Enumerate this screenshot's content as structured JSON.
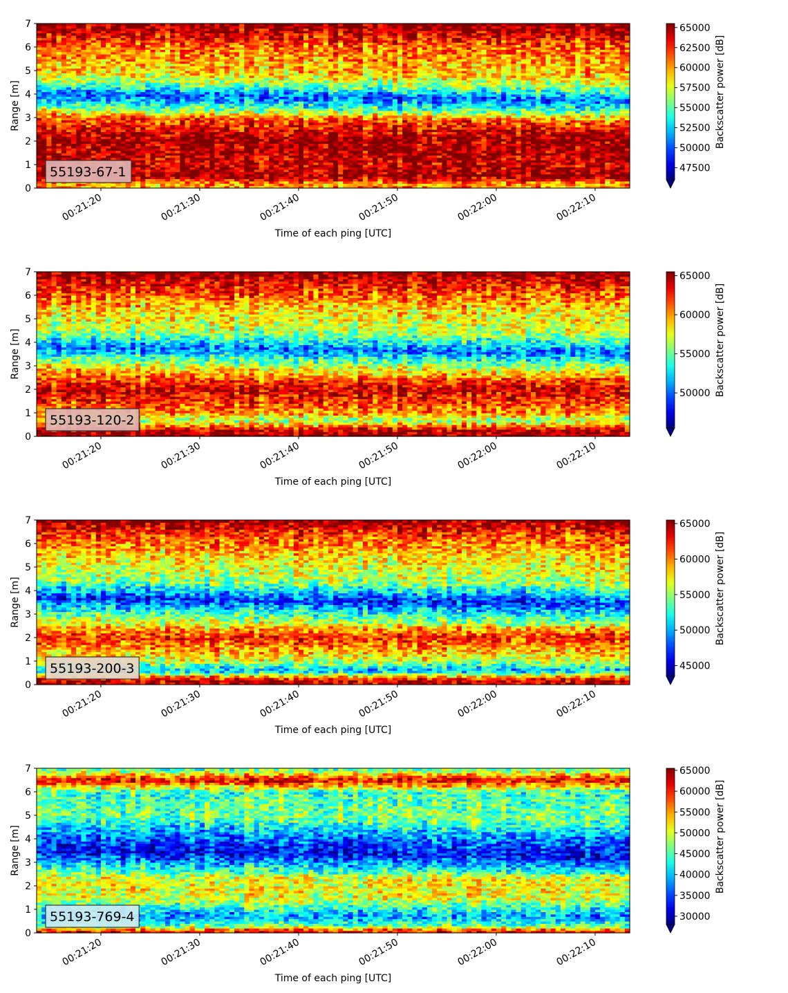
{
  "chart_data": [
    {
      "type": "heatmap",
      "panel_label": "55193-67-1",
      "label_box_color": "#e0b4b4",
      "xlabel": "Time of each ping [UTC]",
      "ylabel": "Range [m]",
      "colorbar_label": "Backscatter power [dB]",
      "x_start": "00:21:13.5",
      "x_end": "00:22:13.5",
      "x_ticks": [
        "00:21:20",
        "00:21:30",
        "00:21:40",
        "00:21:50",
        "00:22:00",
        "00:22:10"
      ],
      "ylim": [
        0,
        7
      ],
      "y_ticks": [
        0,
        1,
        2,
        3,
        4,
        5,
        6,
        7
      ],
      "colorbar_range": [
        46000,
        65500
      ],
      "colorbar_ticks": [
        47500,
        50000,
        52500,
        55000,
        57500,
        60000,
        62500,
        65000
      ],
      "colormap": "jet",
      "colorbar_extend": "min",
      "band_profile": [
        {
          "range": 0.2,
          "value": 60000
        },
        {
          "range": 0.5,
          "value": 65000
        },
        {
          "range": 1.0,
          "value": 64000
        },
        {
          "range": 2.0,
          "value": 65000
        },
        {
          "range": 3.0,
          "value": 62000
        },
        {
          "range": 3.5,
          "value": 55000
        },
        {
          "range": 4.0,
          "value": 50000
        },
        {
          "range": 4.5,
          "value": 56000
        },
        {
          "range": 5.0,
          "value": 59000
        },
        {
          "range": 6.0,
          "value": 61000
        },
        {
          "range": 6.6,
          "value": 64000
        },
        {
          "range": 7.0,
          "value": 65500
        }
      ]
    },
    {
      "type": "heatmap",
      "panel_label": "55193-120-2",
      "label_box_color": "#e0b4b4",
      "xlabel": "Time of each ping [UTC]",
      "ylabel": "Range [m]",
      "colorbar_label": "Backscatter power [dB]",
      "x_start": "00:21:13.5",
      "x_end": "00:22:13.5",
      "x_ticks": [
        "00:21:20",
        "00:21:30",
        "00:21:40",
        "00:21:50",
        "00:22:00",
        "00:22:10"
      ],
      "ylim": [
        0,
        7
      ],
      "y_ticks": [
        0,
        1,
        2,
        3,
        4,
        5,
        6,
        7
      ],
      "colorbar_range": [
        45500,
        65500
      ],
      "colorbar_ticks": [
        50000,
        55000,
        60000,
        65000
      ],
      "colormap": "jet",
      "colorbar_extend": "min",
      "band_profile": [
        {
          "range": 0.2,
          "value": 65000
        },
        {
          "range": 0.7,
          "value": 56000
        },
        {
          "range": 1.0,
          "value": 60000
        },
        {
          "range": 2.0,
          "value": 64000
        },
        {
          "range": 3.0,
          "value": 58000
        },
        {
          "range": 3.8,
          "value": 50000
        },
        {
          "range": 4.5,
          "value": 56000
        },
        {
          "range": 5.5,
          "value": 59000
        },
        {
          "range": 6.5,
          "value": 63000
        },
        {
          "range": 7.0,
          "value": 65500
        }
      ]
    },
    {
      "type": "heatmap",
      "panel_label": "55193-200-3",
      "label_box_color": "#e8d2c8",
      "xlabel": "Time of each ping [UTC]",
      "ylabel": "Range [m]",
      "colorbar_label": "Backscatter power [dB]",
      "x_start": "00:21:13.5",
      "x_end": "00:22:13.5",
      "x_ticks": [
        "00:21:20",
        "00:21:30",
        "00:21:40",
        "00:21:50",
        "00:22:00",
        "00:22:10"
      ],
      "ylim": [
        0,
        7
      ],
      "y_ticks": [
        0,
        1,
        2,
        3,
        4,
        5,
        6,
        7
      ],
      "colorbar_range": [
        43500,
        65500
      ],
      "colorbar_ticks": [
        45000,
        50000,
        55000,
        60000,
        65000
      ],
      "colormap": "jet",
      "colorbar_extend": "min",
      "band_profile": [
        {
          "range": 0.2,
          "value": 64000
        },
        {
          "range": 0.6,
          "value": 50000
        },
        {
          "range": 1.0,
          "value": 56000
        },
        {
          "range": 2.0,
          "value": 62000
        },
        {
          "range": 3.0,
          "value": 54000
        },
        {
          "range": 3.7,
          "value": 47000
        },
        {
          "range": 4.5,
          "value": 55000
        },
        {
          "range": 5.5,
          "value": 58000
        },
        {
          "range": 6.5,
          "value": 62000
        },
        {
          "range": 7.0,
          "value": 65500
        }
      ]
    },
    {
      "type": "heatmap",
      "panel_label": "55193-769-4",
      "label_box_color": "#cdeaf2",
      "xlabel": "Time of each ping [UTC]",
      "ylabel": "Range [m]",
      "colorbar_label": "Backscatter power [dB]",
      "x_start": "00:21:13.5",
      "x_end": "00:22:13.5",
      "x_ticks": [
        "00:21:20",
        "00:21:30",
        "00:21:40",
        "00:21:50",
        "00:22:00",
        "00:22:10"
      ],
      "ylim": [
        0,
        7
      ],
      "y_ticks": [
        0,
        1,
        2,
        3,
        4,
        5,
        6,
        7
      ],
      "colorbar_range": [
        28000,
        65500
      ],
      "colorbar_ticks": [
        30000,
        35000,
        40000,
        45000,
        50000,
        55000,
        60000,
        65000
      ],
      "colormap": "jet",
      "colorbar_extend": "min",
      "band_profile": [
        {
          "range": 0.1,
          "value": 60000
        },
        {
          "range": 0.3,
          "value": 46000
        },
        {
          "range": 0.7,
          "value": 38000
        },
        {
          "range": 1.5,
          "value": 50000
        },
        {
          "range": 2.3,
          "value": 51000
        },
        {
          "range": 3.0,
          "value": 40000
        },
        {
          "range": 3.5,
          "value": 32000
        },
        {
          "range": 4.3,
          "value": 38000
        },
        {
          "range": 5.0,
          "value": 46000
        },
        {
          "range": 6.0,
          "value": 44000
        },
        {
          "range": 6.5,
          "value": 62000
        },
        {
          "range": 7.0,
          "value": 44000
        }
      ]
    }
  ]
}
